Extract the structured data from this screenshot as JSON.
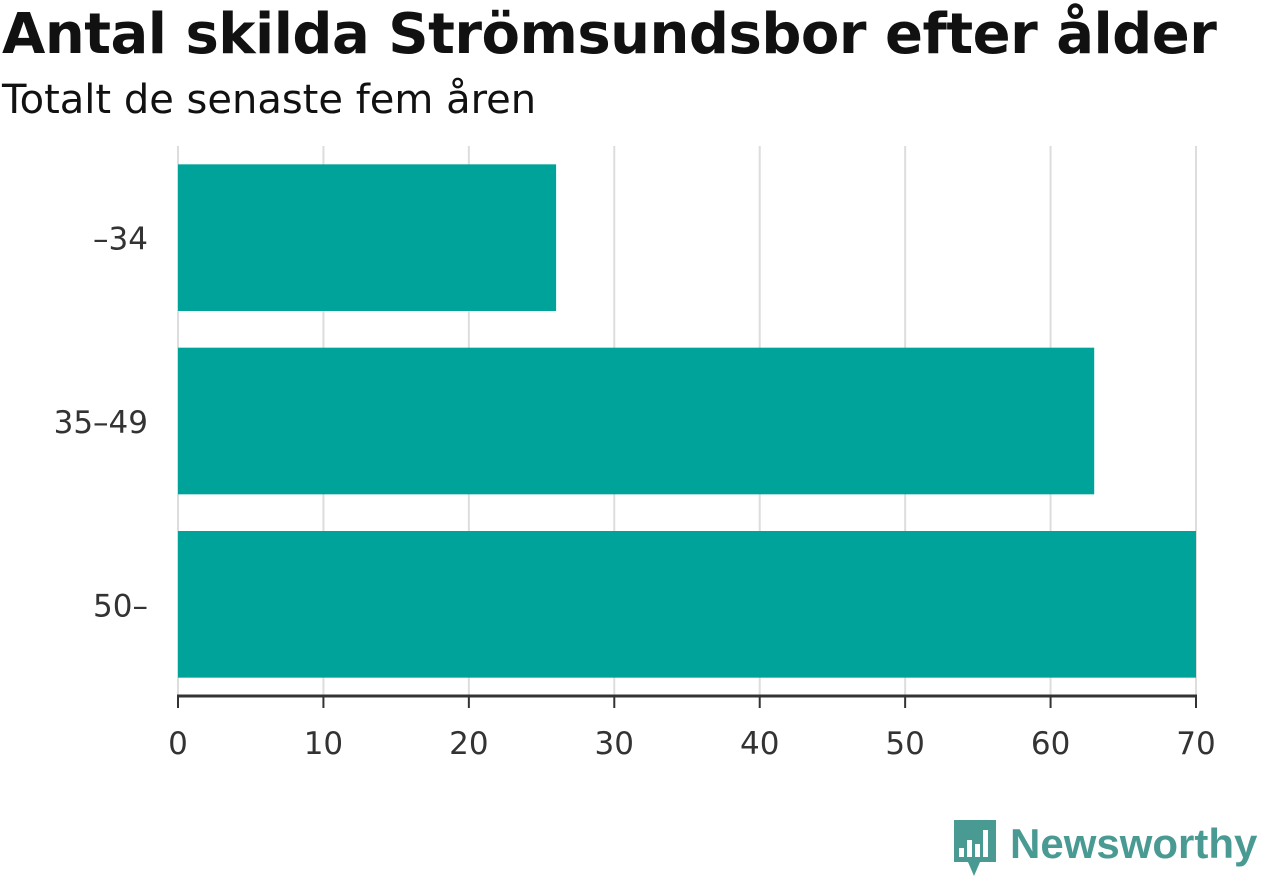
{
  "chart_data": {
    "type": "bar",
    "orientation": "horizontal",
    "title": "Antal skilda Strömsundsbor efter ålder",
    "subtitle": "Totalt de senaste fem åren",
    "categories": [
      "–34",
      "35–49",
      "50–"
    ],
    "values": [
      26,
      63,
      70
    ],
    "xlim": [
      0,
      70
    ],
    "xticks": [
      0,
      10,
      20,
      30,
      40,
      50,
      60,
      70
    ],
    "xlabel": "",
    "ylabel": "",
    "grid": "vertical",
    "legend": "none",
    "bar_color": "#00a39a"
  },
  "colors": {
    "bar": "#00a39a",
    "grid": "#dddddd",
    "axis": "#333333",
    "text": "#333333",
    "logo": "#4a9a94"
  },
  "branding": {
    "logo_text": "Newsworthy",
    "logo_icon": "chart-bubble-icon"
  }
}
